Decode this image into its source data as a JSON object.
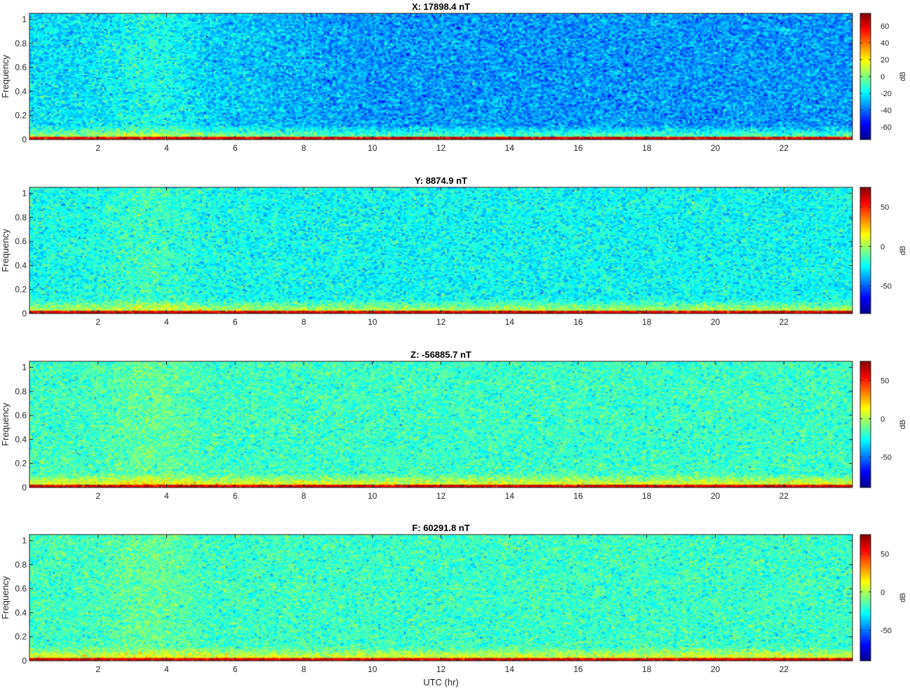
{
  "chart_data": [
    {
      "type": "heatmap",
      "title": "X: 17898.4 nT",
      "xlabel": "",
      "ylabel": "Frequency",
      "xlim": [
        0,
        24
      ],
      "ylim": [
        0,
        1.05
      ],
      "x_ticks": [
        2,
        4,
        6,
        8,
        10,
        12,
        14,
        16,
        18,
        20,
        22
      ],
      "y_ticks": [
        0,
        0.2,
        0.4,
        0.6,
        0.8,
        1
      ],
      "colorbar": {
        "label": "dB",
        "range": [
          -75,
          75
        ],
        "ticks": [
          -60,
          -40,
          -20,
          0,
          20,
          40,
          60
        ]
      },
      "background_db": -22,
      "late_background_db": -34
    },
    {
      "type": "heatmap",
      "title": "Y: 8874.9 nT",
      "xlabel": "",
      "ylabel": "Frequency",
      "xlim": [
        0,
        24
      ],
      "ylim": [
        0,
        1.05
      ],
      "x_ticks": [
        2,
        4,
        6,
        8,
        10,
        12,
        14,
        16,
        18,
        20,
        22
      ],
      "y_ticks": [
        0,
        0.2,
        0.4,
        0.6,
        0.8,
        1
      ],
      "colorbar": {
        "label": "dB",
        "range": [
          -85,
          75
        ],
        "ticks": [
          -50,
          0,
          50
        ]
      },
      "background_db": -22,
      "late_background_db": -24
    },
    {
      "type": "heatmap",
      "title": "Z: -56885.7 nT",
      "xlabel": "",
      "ylabel": "Frequency",
      "xlim": [
        0,
        24
      ],
      "ylim": [
        0,
        1.05
      ],
      "x_ticks": [
        2,
        4,
        6,
        8,
        10,
        12,
        14,
        16,
        18,
        20,
        22
      ],
      "y_ticks": [
        0,
        0.2,
        0.4,
        0.6,
        0.8,
        1
      ],
      "colorbar": {
        "label": "dB",
        "range": [
          -90,
          75
        ],
        "ticks": [
          -50,
          0,
          50
        ]
      },
      "background_db": -18,
      "late_background_db": -19
    },
    {
      "type": "heatmap",
      "title": "F: 60291.8 nT",
      "xlabel": "UTC (hr)",
      "ylabel": "Frequency",
      "xlim": [
        0,
        24
      ],
      "ylim": [
        0,
        1.05
      ],
      "x_ticks": [
        2,
        4,
        6,
        8,
        10,
        12,
        14,
        16,
        18,
        20,
        22
      ],
      "y_ticks": [
        0,
        0.2,
        0.4,
        0.6,
        0.8,
        1
      ],
      "colorbar": {
        "label": "dB",
        "range": [
          -90,
          75
        ],
        "ticks": [
          -50,
          0,
          50
        ]
      },
      "background_db": -18,
      "late_background_db": -19
    }
  ]
}
